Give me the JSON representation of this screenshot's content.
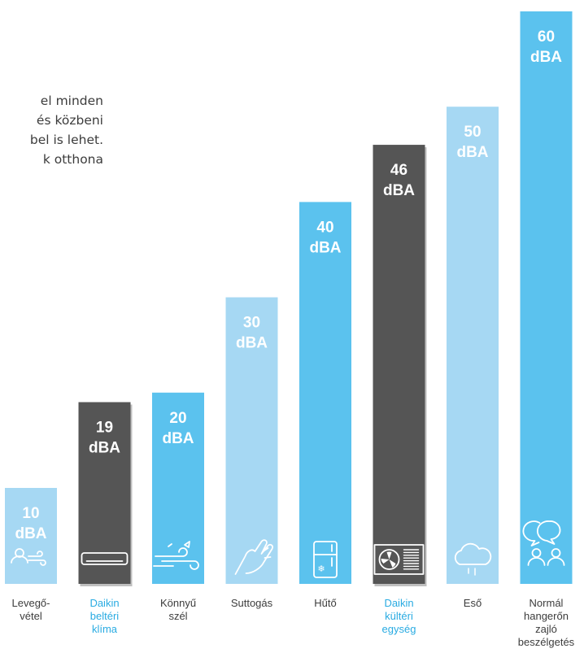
{
  "intro_text": [
    "el minden",
    "és közbeni",
    "bel is lehet.",
    "k otthona"
  ],
  "chart_data": {
    "type": "bar",
    "title": "",
    "xlabel": "",
    "ylabel": "",
    "ylim": [
      0,
      60
    ],
    "categories": [
      [
        "Levegő-",
        "vétel"
      ],
      [
        "Daikin",
        "beltéri",
        "klíma"
      ],
      [
        "Könnyű",
        "szél"
      ],
      [
        "Suttogás"
      ],
      [
        "Hűtő"
      ],
      [
        "Daikin",
        "kültéri",
        "egység"
      ],
      [
        "Eső"
      ],
      [
        "Normál",
        "hangerőn",
        "zajló",
        "beszélgetés"
      ]
    ],
    "values": [
      10,
      19,
      20,
      30,
      40,
      46,
      50,
      60
    ],
    "value_labels": [
      [
        "10",
        "dBA"
      ],
      [
        "19",
        "dBA"
      ],
      [
        "20",
        "dBA"
      ],
      [
        "30",
        "dBA"
      ],
      [
        "40",
        "dBA"
      ],
      [
        "46",
        "dBA"
      ],
      [
        "50",
        "dBA"
      ],
      [
        "60",
        "dBA"
      ]
    ],
    "icons": [
      "air-intake-icon",
      "indoor-unit-icon",
      "breeze-icon",
      "whisper-icon",
      "fridge-icon",
      "outdoor-unit-icon",
      "rain-cloud-icon",
      "conversation-icon"
    ],
    "bar_colors": [
      "#a6d8f3",
      "#555555",
      "#5bc2ee",
      "#a6d8f3",
      "#5bc2ee",
      "#555555",
      "#a6d8f3",
      "#5bc2ee"
    ],
    "label_colors": [
      "#3c3c3c",
      "#29abe2",
      "#3c3c3c",
      "#3c3c3c",
      "#3c3c3c",
      "#29abe2",
      "#3c3c3c",
      "#3c3c3c"
    ],
    "grid": false,
    "legend": "none"
  }
}
